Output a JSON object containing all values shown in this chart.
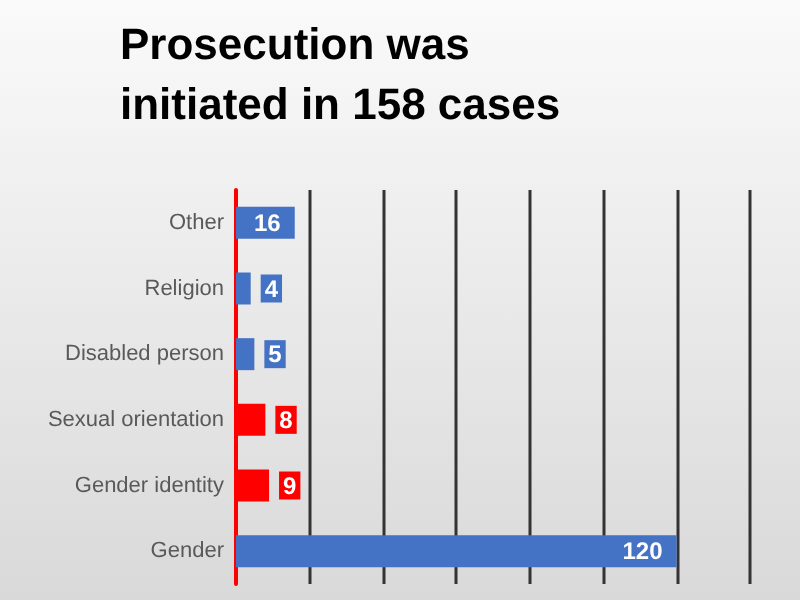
{
  "chart_data": {
    "type": "bar",
    "orientation": "horizontal",
    "title": "Prosecution was initiated in 158 cases",
    "categories": [
      "Other",
      "Religion",
      "Disabled person",
      "Sexual orientation",
      "Gender identity",
      "Gender"
    ],
    "values": [
      16,
      4,
      5,
      8,
      9,
      120
    ],
    "colors": [
      "#4472c4",
      "#4472c4",
      "#4472c4",
      "#ff0000",
      "#ff0000",
      "#4472c4"
    ],
    "xlim": [
      0,
      140
    ],
    "xticks": [
      {
        "value": 20,
        "label": null
      },
      {
        "value": 40,
        "label": null
      },
      {
        "value": 60,
        "label": null
      },
      {
        "value": 80,
        "label": null
      },
      {
        "value": 100,
        "label": null
      },
      {
        "value": 120,
        "label": null
      },
      {
        "value": 140,
        "label": null
      }
    ],
    "tick_labels": "y",
    "grid": "x",
    "data_labels": true
  }
}
